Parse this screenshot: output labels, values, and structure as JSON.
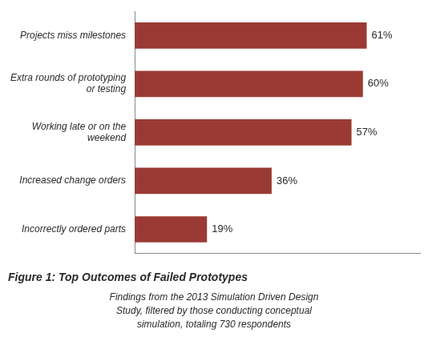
{
  "chart_data": {
    "type": "bar",
    "orientation": "horizontal",
    "title": "Figure 1: Top Outcomes of Failed Prototypes",
    "subtitle": "Findings from the 2013 Simulation Driven Design\nStudy, filtered by those conducting conceptual\nsimulation, totaling 730 respondents",
    "categories": [
      "Incorrectly ordered parts",
      "Increased change orders",
      "Working late or on the\nweekend",
      "Extra rounds of prototyping\nor testing",
      "Projects miss milestones"
    ],
    "values": [
      19,
      36,
      57,
      60,
      61
    ],
    "value_labels": [
      "19%",
      "36%",
      "57%",
      "60%",
      "61%"
    ],
    "color": "#9B3A34",
    "xlim": [
      0,
      75
    ],
    "grid": false,
    "data_labels": true,
    "tick_labels": "y"
  }
}
